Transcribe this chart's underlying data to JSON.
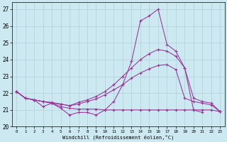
{
  "xlabel": "Windchill (Refroidissement éolien,°C)",
  "background_color": "#cce8f0",
  "grid_color": "#b0d0d8",
  "line_color": "#993399",
  "xlim": [
    -0.5,
    23.5
  ],
  "ylim": [
    20,
    27.4
  ],
  "yticks": [
    20,
    21,
    22,
    23,
    24,
    25,
    26,
    27
  ],
  "xticks": [
    0,
    1,
    2,
    3,
    4,
    5,
    6,
    7,
    8,
    9,
    10,
    11,
    12,
    13,
    14,
    15,
    16,
    17,
    18,
    19,
    20,
    21,
    22,
    23
  ],
  "s1_x": [
    0,
    1,
    2,
    3,
    4,
    5,
    6,
    7,
    8,
    9,
    10,
    11,
    12,
    13,
    14,
    15,
    16,
    17,
    18,
    19,
    20,
    21
  ],
  "s1_y": [
    22.1,
    21.7,
    21.6,
    21.2,
    21.4,
    21.1,
    20.7,
    20.85,
    20.85,
    20.7,
    21.0,
    21.5,
    22.5,
    23.9,
    26.3,
    26.6,
    27.0,
    24.9,
    24.5,
    23.5,
    21.0,
    20.85
  ],
  "s2_x": [
    0,
    1,
    2,
    3,
    4,
    5,
    6,
    7,
    8,
    9,
    10,
    11,
    12,
    13,
    14,
    15,
    16,
    17,
    18,
    19,
    20,
    21,
    22,
    23
  ],
  "s2_y": [
    22.1,
    21.7,
    21.6,
    21.5,
    21.4,
    21.2,
    21.1,
    21.05,
    21.05,
    21.05,
    21.0,
    21.0,
    21.0,
    21.0,
    21.0,
    21.0,
    21.0,
    21.0,
    21.0,
    21.0,
    21.0,
    21.0,
    21.0,
    20.9
  ],
  "s3_x": [
    0,
    1,
    2,
    3,
    4,
    5,
    6,
    7,
    8,
    9,
    10,
    11,
    12,
    13,
    14,
    15,
    16,
    17,
    18,
    19,
    20,
    21,
    22,
    23
  ],
  "s3_y": [
    22.1,
    21.7,
    21.6,
    21.5,
    21.4,
    21.35,
    21.25,
    21.45,
    21.6,
    21.8,
    22.1,
    22.5,
    23.0,
    23.5,
    24.0,
    24.35,
    24.6,
    24.5,
    24.2,
    23.5,
    21.7,
    21.5,
    21.4,
    20.9
  ],
  "s4_x": [
    0,
    1,
    2,
    3,
    4,
    5,
    6,
    7,
    8,
    9,
    10,
    11,
    12,
    13,
    14,
    15,
    16,
    17,
    18,
    19,
    20,
    21,
    22,
    23
  ],
  "s4_y": [
    22.1,
    21.7,
    21.6,
    21.5,
    21.45,
    21.35,
    21.25,
    21.35,
    21.5,
    21.65,
    21.9,
    22.2,
    22.5,
    22.9,
    23.2,
    23.45,
    23.65,
    23.7,
    23.4,
    21.7,
    21.5,
    21.4,
    21.3,
    20.9
  ]
}
